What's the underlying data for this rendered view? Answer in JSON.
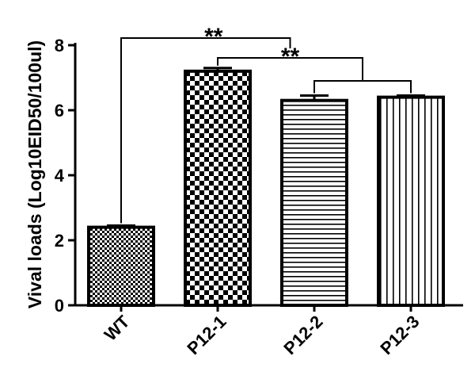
{
  "chart_data": {
    "type": "bar",
    "categories": [
      "WT",
      "P12-1",
      "P12-2",
      "P12-3"
    ],
    "values": [
      2.4,
      7.2,
      6.3,
      6.4
    ],
    "errors": [
      0.05,
      0.1,
      0.15,
      0.05
    ],
    "patterns": [
      "fine-checker",
      "coarse-checker",
      "horizontal-lines",
      "vertical-lines"
    ],
    "ylabel": "Vival loads (Log10EID50/100ul)",
    "ylim": [
      0,
      8
    ],
    "yticks": [
      0,
      2,
      4,
      6,
      8
    ],
    "grid": false,
    "significance": [
      {
        "from": "WT",
        "to": "P12-1, P12-2, P12-3",
        "label": "**"
      },
      {
        "from": "P12-1",
        "to": "P12-2, P12-3",
        "label": "**"
      }
    ]
  }
}
